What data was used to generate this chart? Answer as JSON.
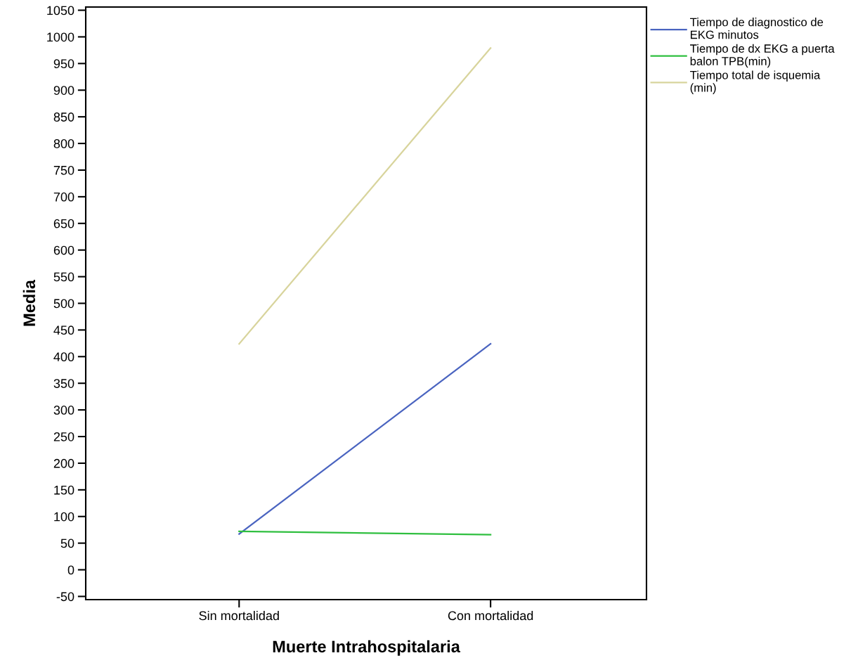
{
  "chart_data": {
    "type": "line",
    "xlabel": "Muerte Intrahospitalaria",
    "ylabel": "Media",
    "categories": [
      "Sin mortalidad",
      "Con mortalidad"
    ],
    "series": [
      {
        "name": "Tiempo de diagnostico de EKG minutos",
        "color": "#4a64c0",
        "values": [
          67,
          424
        ]
      },
      {
        "name": "Tiempo de dx EKG a puerta balon TPB(min)",
        "color": "#2fbf3f",
        "values": [
          72,
          66
        ]
      },
      {
        "name": "Tiempo total de isquemia (min)",
        "color": "#d8d49c",
        "values": [
          424,
          979
        ]
      }
    ],
    "ylim": [
      -56,
      1056
    ],
    "yticks": [
      -50,
      0,
      50,
      100,
      150,
      200,
      250,
      300,
      350,
      400,
      450,
      500,
      550,
      600,
      650,
      700,
      750,
      800,
      850,
      900,
      950,
      1000,
      1050
    ],
    "grid": false,
    "legend": "top right",
    "marker": "none",
    "line_style": "solid"
  }
}
